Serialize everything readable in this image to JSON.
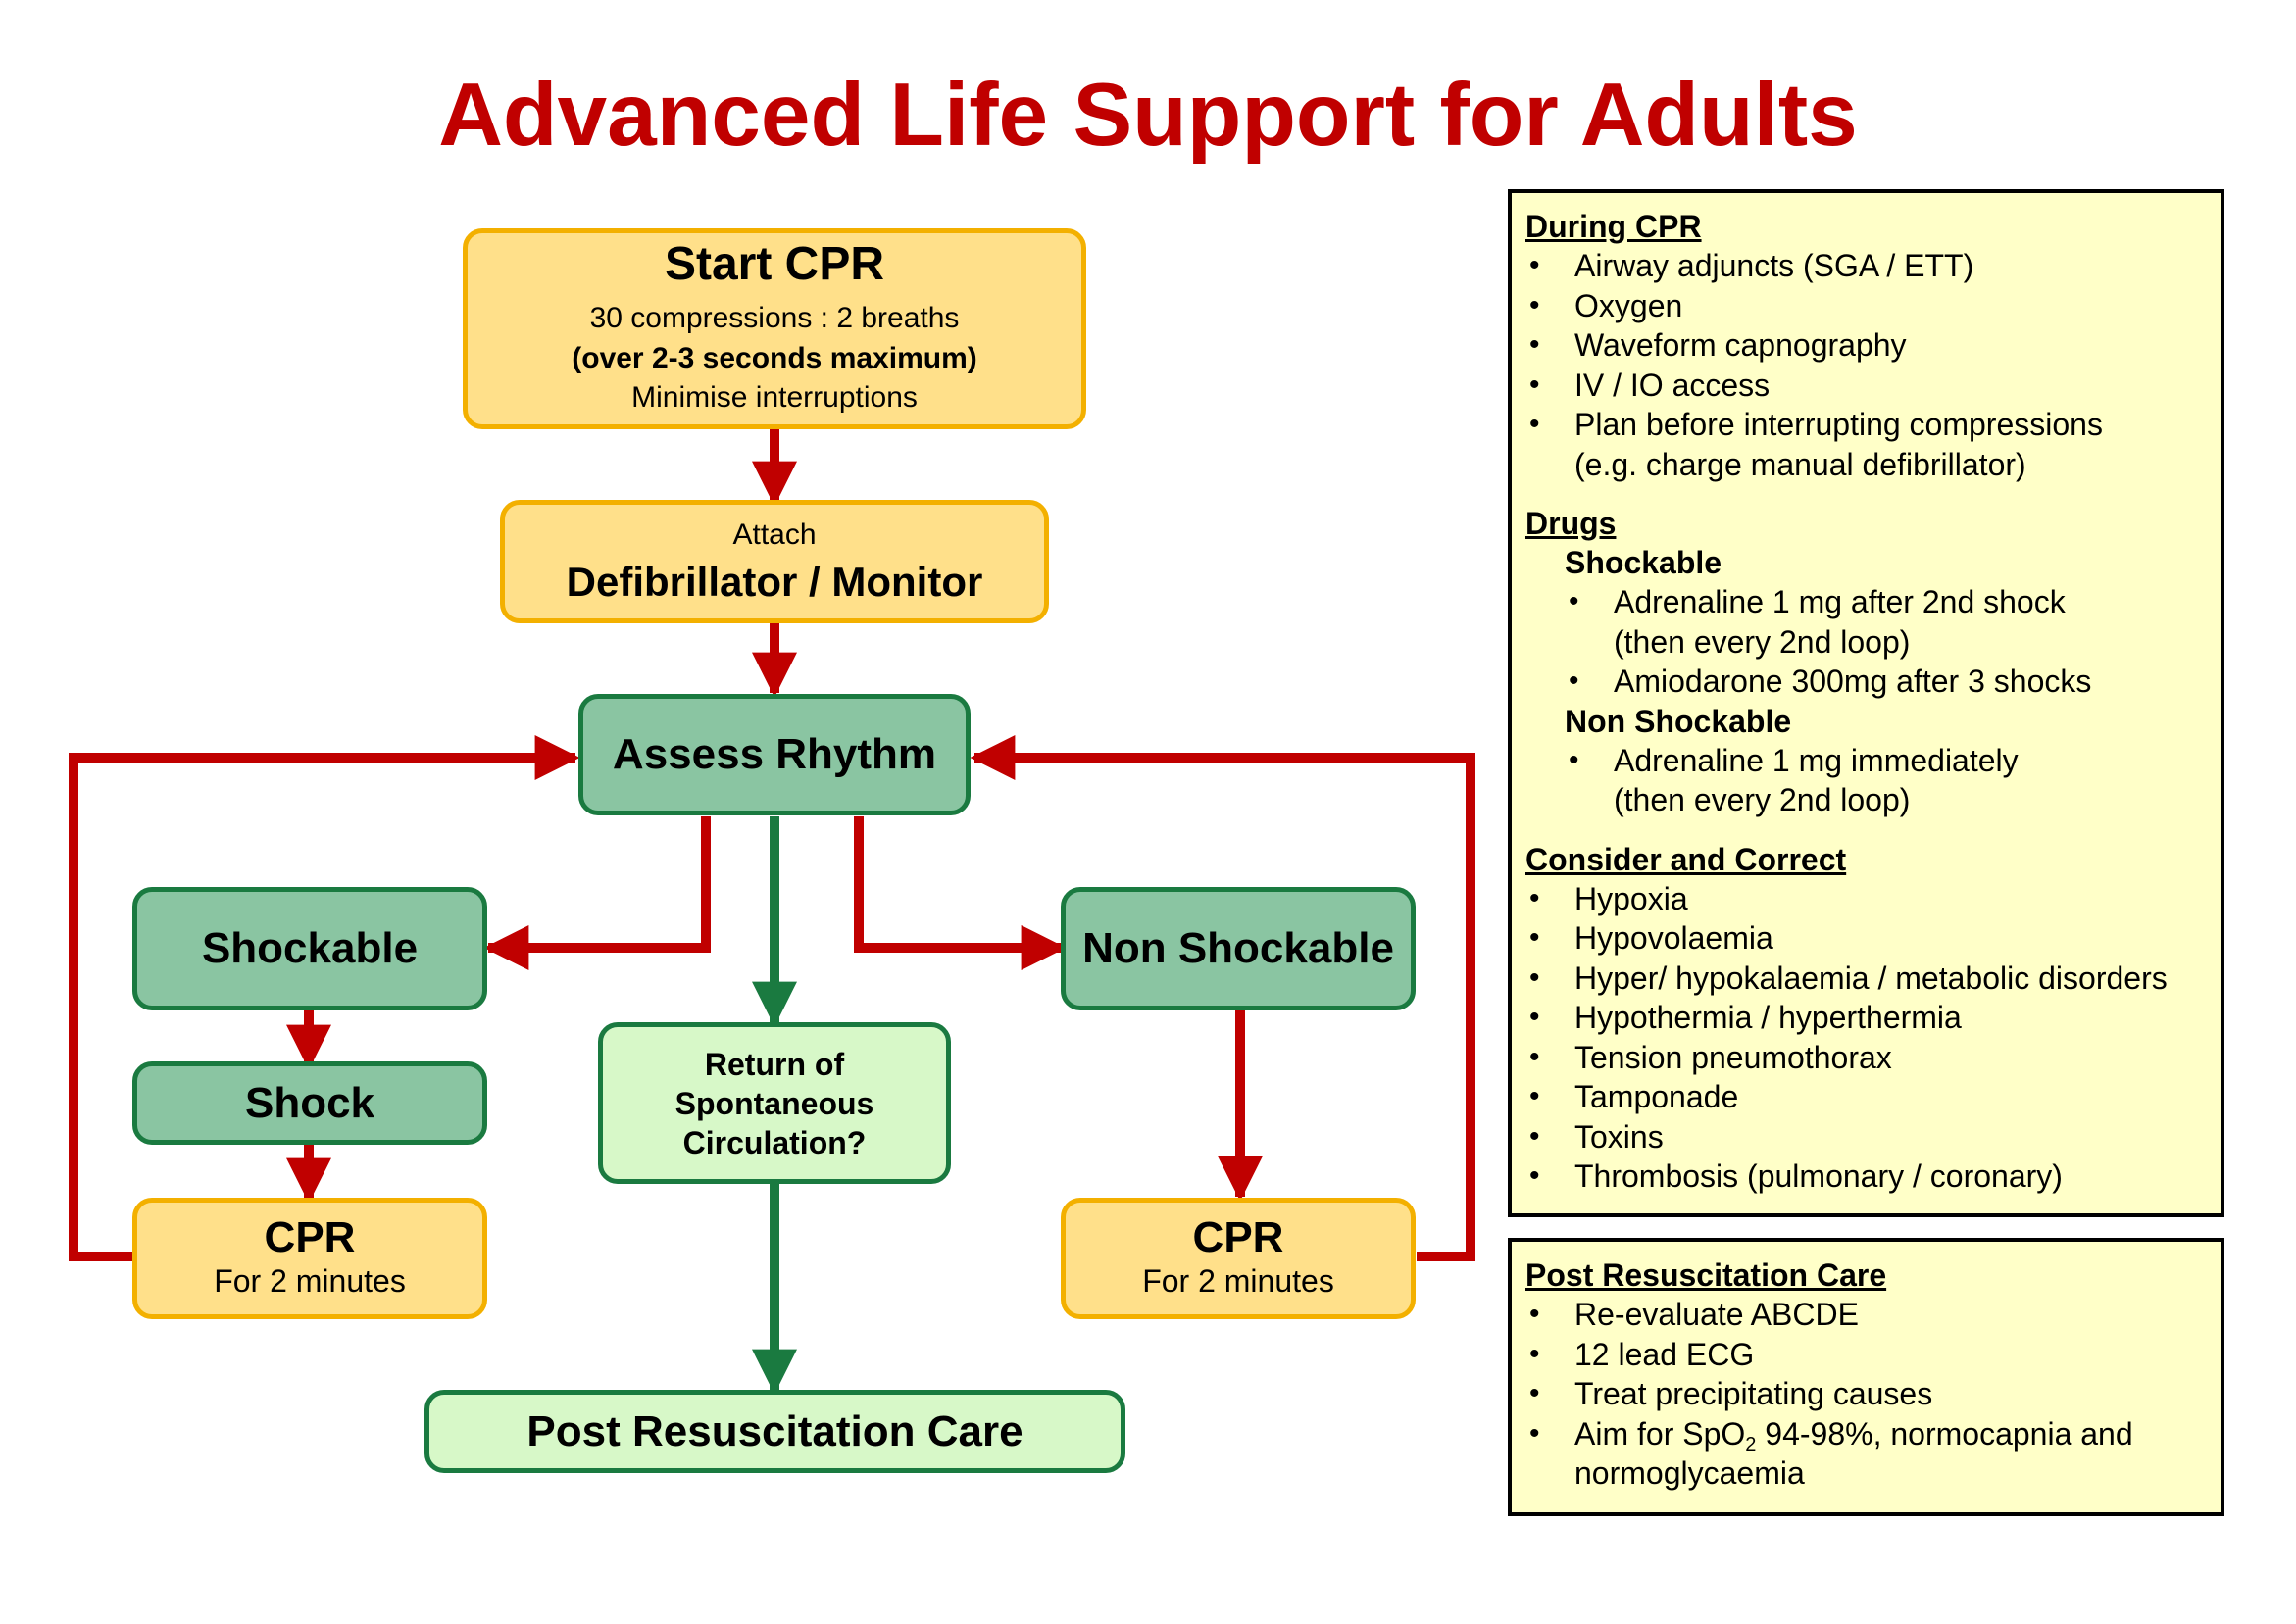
{
  "title": "Advanced Life Support for Adults",
  "flow": {
    "start_cpr": {
      "heading": "Start CPR",
      "line1": "30 compressions : 2 breaths",
      "line2": "(over 2-3 seconds maximum)",
      "line3": "Minimise interruptions"
    },
    "attach": {
      "small": "Attach",
      "heading": "Defibrillator / Monitor"
    },
    "assess_rhythm": "Assess Rhythm",
    "shockable": "Shockable",
    "shock": "Shock",
    "non_shockable": "Non Shockable",
    "rosc": {
      "line1": "Return of",
      "line2": "Spontaneous",
      "line3": "Circulation?"
    },
    "cpr_left": {
      "heading": "CPR",
      "sub": "For 2 minutes"
    },
    "cpr_right": {
      "heading": "CPR",
      "sub": "For 2 minutes"
    },
    "post_care": "Post Resuscitation Care"
  },
  "colors": {
    "arrow_red": "#c00000",
    "arrow_green": "#1a7a40",
    "title_red": "#c00000"
  },
  "info": {
    "during_cpr": {
      "heading": "During CPR",
      "items": [
        "Airway adjuncts (SGA / ETT)",
        "Oxygen",
        "Waveform capnography",
        "IV / IO access",
        "Plan before interrupting compressions",
        "(e.g. charge manual defibrillator)"
      ]
    },
    "drugs": {
      "heading": "Drugs",
      "shockable_heading": "Shockable",
      "shockable_items": [
        "Adrenaline 1 mg after 2nd shock",
        "(then every 2nd loop)",
        "Amiodarone 300mg after 3 shocks"
      ],
      "non_shockable_heading": "Non Shockable",
      "non_shockable_items": [
        "Adrenaline 1 mg immediately",
        "(then every 2nd loop)"
      ]
    },
    "consider": {
      "heading": "Consider and Correct",
      "items": [
        "Hypoxia",
        "Hypovolaemia",
        "Hyper/ hypokalaemia / metabolic disorders",
        "Hypothermia / hyperthermia",
        "Tension pneumothorax",
        "Tamponade",
        "Toxins",
        "Thrombosis (pulmonary / coronary)"
      ]
    },
    "post": {
      "heading": "Post Resuscitation Care",
      "items": [
        "Re-evaluate ABCDE",
        "12 lead ECG",
        "Treat precipitating causes"
      ],
      "aim_prefix": "Aim for SpO",
      "aim_sub": "2",
      "aim_suffix": " 94-98%, normocapnia and",
      "aim_cont": "normoglycaemia"
    }
  }
}
